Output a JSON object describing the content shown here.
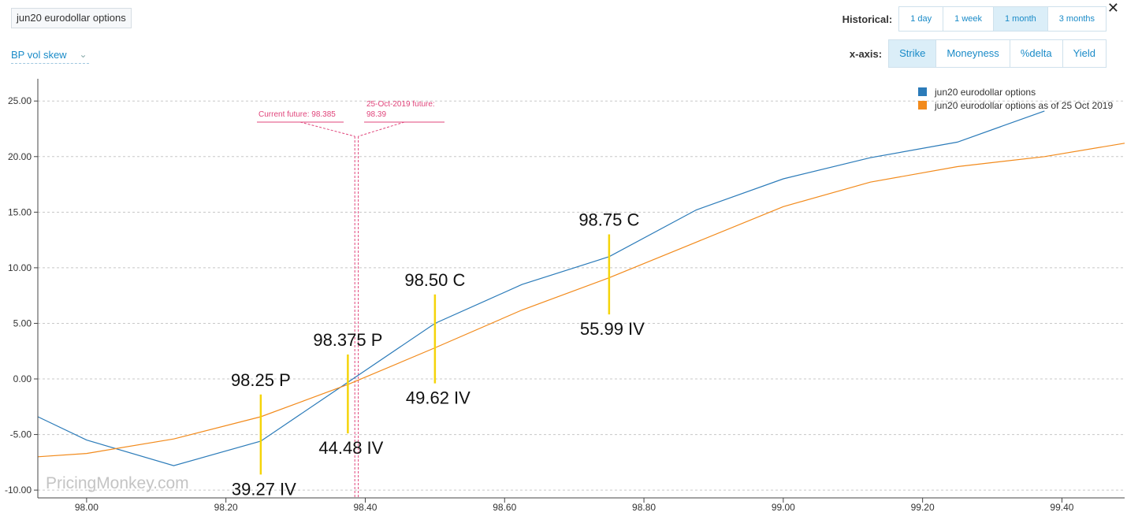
{
  "header": {
    "instrument_label": "jun20 eurodollar options",
    "view_select": "BP vol skew",
    "historical_label": "Historical:",
    "historical_options": [
      "1 day",
      "1 week",
      "1 month",
      "3 months"
    ],
    "historical_selected": "1 month",
    "xaxis_label": "x-axis:",
    "xaxis_options": [
      "Strike",
      "Moneyness",
      "%delta",
      "Yield"
    ],
    "xaxis_selected": "Strike",
    "close_symbol": "✕"
  },
  "watermark": "PricingMonkey.com",
  "chart_data": {
    "type": "line",
    "xlim": [
      97.93,
      99.49
    ],
    "ylim": [
      -10.7,
      27.0
    ],
    "x_ticks": [
      98.0,
      98.2,
      98.4,
      98.6,
      98.8,
      99.0,
      99.2,
      99.4
    ],
    "x_tick_labels": [
      "98.00",
      "98.20",
      "98.40",
      "98.60",
      "98.80",
      "99.00",
      "99.20",
      "99.40"
    ],
    "y_ticks": [
      -10,
      -5,
      0,
      5,
      10,
      15,
      20,
      25
    ],
    "y_tick_labels": [
      "-10.00",
      "-5.00",
      "0.00",
      "5.00",
      "10.00",
      "15.00",
      "20.00",
      "25.00"
    ],
    "grid": "horizontal dashed",
    "legend_position": "top-right",
    "series": [
      {
        "name": "jun20 eurodollar options",
        "color": "#2b7bb9",
        "x": [
          97.93,
          98.0,
          98.125,
          98.25,
          98.375,
          98.5,
          98.625,
          98.75,
          98.875,
          99.0,
          99.125,
          99.25,
          99.375
        ],
        "y": [
          -3.4,
          -5.5,
          -7.8,
          -5.6,
          -0.3,
          5.0,
          8.5,
          11.0,
          15.2,
          18.0,
          19.9,
          21.3,
          24.1
        ]
      },
      {
        "name": "jun20 eurodollar options as of 25 Oct 2019",
        "color": "#f28a1b",
        "x": [
          97.93,
          98.0,
          98.125,
          98.25,
          98.375,
          98.5,
          98.625,
          98.75,
          98.875,
          99.0,
          99.125,
          99.25,
          99.375,
          99.49
        ],
        "y": [
          -7.0,
          -6.7,
          -5.4,
          -3.4,
          -0.5,
          2.8,
          6.2,
          9.1,
          12.3,
          15.5,
          17.7,
          19.1,
          20.0,
          21.2
        ]
      }
    ],
    "markers": [
      {
        "label": "Current future: 98.385",
        "x": 98.385,
        "color": "#e0457b"
      },
      {
        "label_lines": [
          "25-Oct-2019 future:",
          "98.39"
        ],
        "x": 98.39,
        "color": "#e0457b"
      }
    ],
    "annotations": [
      {
        "x": 98.25,
        "y_top": -1.4,
        "y_bottom": -8.6,
        "top_label": "98.25 P",
        "bottom_label": "39.27 IV"
      },
      {
        "x": 98.375,
        "y_top": 2.2,
        "y_bottom": -4.9,
        "top_label": "98.375 P",
        "bottom_label": "44.48 IV"
      },
      {
        "x": 98.5,
        "y_top": 7.6,
        "y_bottom": -0.4,
        "top_label": "98.50 C",
        "bottom_label": "49.62 IV"
      },
      {
        "x": 98.75,
        "y_top": 13.0,
        "y_bottom": 5.8,
        "top_label": "98.75 C",
        "bottom_label": "55.99 IV"
      }
    ],
    "annotation_color": "#f5d40a"
  }
}
